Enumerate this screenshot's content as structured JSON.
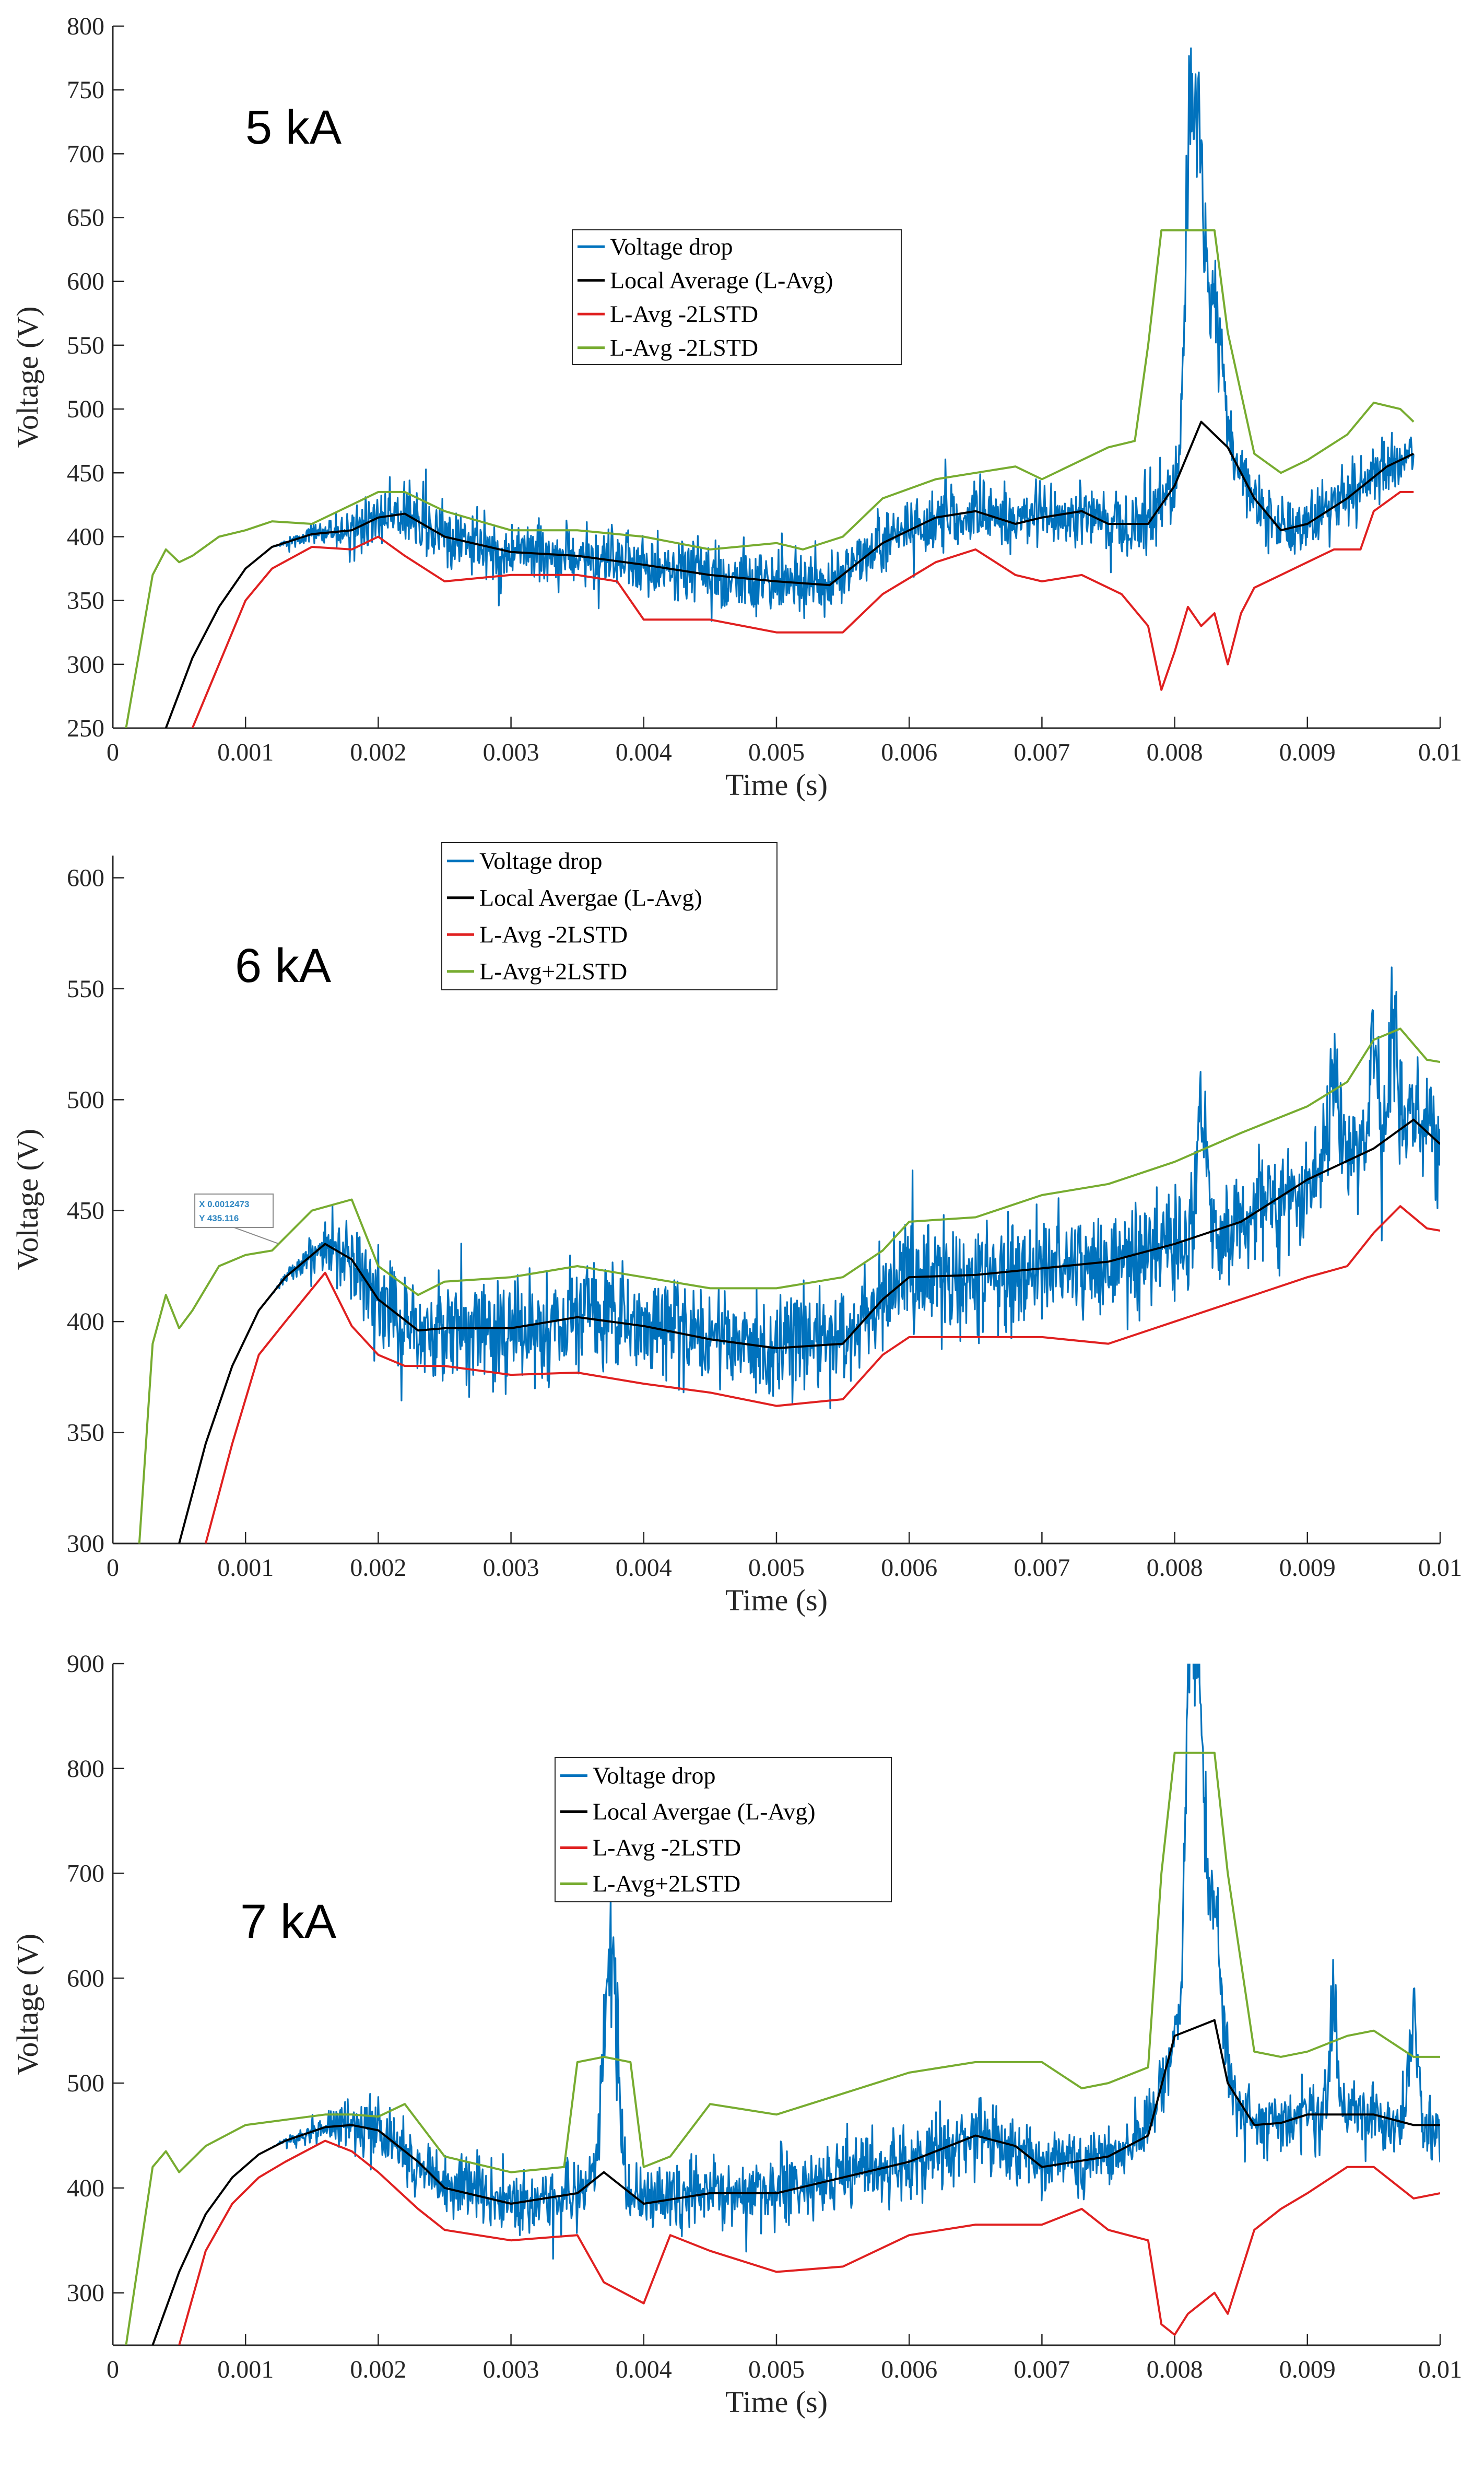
{
  "colors": {
    "voltage_drop": "#0072BD",
    "local_average": "#000000",
    "lower_band": "#E02020",
    "upper_band": "#77AC30",
    "axis": "#262626",
    "datatip_text": "#2E86C1"
  },
  "chart_data": [
    {
      "type": "line",
      "label": "5 kA",
      "xlabel": "Time (s)",
      "ylabel": "Voltage (V)",
      "xlim": [
        0,
        0.01
      ],
      "ylim": [
        250,
        800
      ],
      "x_ticks": [
        0,
        0.001,
        0.002,
        0.003,
        0.004,
        0.005,
        0.006,
        0.007,
        0.008,
        0.009,
        0.01
      ],
      "x_tick_labels": [
        "0",
        "0.001",
        "0.002",
        "0.003",
        "0.004",
        "0.005",
        "0.006",
        "0.007",
        "0.008",
        "0.009",
        "0.01"
      ],
      "y_ticks": [
        250,
        300,
        350,
        400,
        450,
        500,
        550,
        600,
        650,
        700,
        750,
        800
      ],
      "y_tick_labels": [
        "250",
        "300",
        "350",
        "400",
        "450",
        "500",
        "550",
        "600",
        "650",
        "700",
        "750",
        "800"
      ],
      "legend": [
        "Voltage drop",
        "Local Average (L-Avg)",
        "L-Avg -2LSTD",
        "L-Avg -2LSTD"
      ],
      "legend_position": "top-center",
      "datatip": null,
      "signal": {
        "x_end": 0.0098,
        "noise": 22,
        "spikes": [
          [
            0.00815,
            730,
            5e-05
          ],
          [
            0.0081,
            690,
            4e-05
          ],
          [
            0.0082,
            640,
            5e-05
          ],
          [
            0.0083,
            600,
            8e-05
          ]
        ]
      },
      "series": [
        {
          "name": "Local Average (L-Avg)",
          "role": "avg",
          "x": [
            0.0004,
            0.0006,
            0.0008,
            0.001,
            0.0012,
            0.0015,
            0.0018,
            0.002,
            0.0022,
            0.0025,
            0.003,
            0.0035,
            0.004,
            0.0045,
            0.005,
            0.0054,
            0.0058,
            0.0062,
            0.0065,
            0.0068,
            0.007,
            0.0073,
            0.0075,
            0.0078,
            0.008,
            0.0082,
            0.0084,
            0.0086,
            0.0088,
            0.009,
            0.0093,
            0.0096,
            0.0098
          ],
          "y": [
            250,
            305,
            345,
            375,
            392,
            402,
            405,
            415,
            418,
            400,
            388,
            385,
            378,
            370,
            365,
            362,
            395,
            415,
            420,
            410,
            415,
            420,
            410,
            410,
            440,
            490,
            470,
            430,
            405,
            410,
            430,
            455,
            465
          ]
        },
        {
          "name": "L-Avg -2LSTD",
          "role": "lower",
          "x": [
            0.0006,
            0.0008,
            0.001,
            0.0012,
            0.0015,
            0.0018,
            0.002,
            0.0022,
            0.0025,
            0.003,
            0.0035,
            0.0038,
            0.004,
            0.0045,
            0.005,
            0.0055,
            0.0058,
            0.0062,
            0.0065,
            0.0068,
            0.007,
            0.0073,
            0.0076,
            0.0078,
            0.0079,
            0.008,
            0.0081,
            0.0082,
            0.0083,
            0.0084,
            0.0085,
            0.0086,
            0.0088,
            0.009,
            0.0092,
            0.0094,
            0.0095,
            0.0097,
            0.0098
          ],
          "y": [
            250,
            300,
            350,
            375,
            392,
            390,
            400,
            385,
            365,
            370,
            370,
            365,
            335,
            335,
            325,
            325,
            355,
            380,
            390,
            370,
            365,
            370,
            355,
            330,
            280,
            310,
            345,
            330,
            340,
            300,
            340,
            360,
            370,
            380,
            390,
            390,
            420,
            435,
            435
          ]
        },
        {
          "name": "L-Avg -2LSTD",
          "role": "upper",
          "x": [
            0.0001,
            0.0003,
            0.0004,
            0.0005,
            0.0006,
            0.0008,
            0.001,
            0.0012,
            0.0015,
            0.0018,
            0.002,
            0.0022,
            0.0025,
            0.003,
            0.0035,
            0.004,
            0.0045,
            0.005,
            0.0052,
            0.0055,
            0.0058,
            0.0062,
            0.0065,
            0.0068,
            0.007,
            0.0073,
            0.0075,
            0.0077,
            0.0078,
            0.0079,
            0.008,
            0.0083,
            0.0084,
            0.0086,
            0.0088,
            0.009,
            0.0093,
            0.0095,
            0.0097,
            0.0098
          ],
          "y": [
            250,
            370,
            390,
            380,
            385,
            400,
            405,
            412,
            410,
            425,
            435,
            435,
            420,
            405,
            405,
            400,
            390,
            395,
            390,
            400,
            430,
            445,
            450,
            455,
            445,
            460,
            470,
            475,
            550,
            640,
            640,
            640,
            560,
            465,
            450,
            460,
            480,
            505,
            500,
            490
          ]
        }
      ]
    },
    {
      "type": "line",
      "label": "6 kA",
      "xlabel": "Time (s)",
      "ylabel": "Voltage (V)",
      "xlim": [
        0,
        0.01
      ],
      "ylim": [
        300,
        610
      ],
      "x_ticks": [
        0,
        0.001,
        0.002,
        0.003,
        0.004,
        0.005,
        0.006,
        0.007,
        0.008,
        0.009,
        0.01
      ],
      "x_tick_labels": [
        "0",
        "0.001",
        "0.002",
        "0.003",
        "0.004",
        "0.005",
        "0.006",
        "0.007",
        "0.008",
        "0.009",
        "0.01"
      ],
      "y_ticks": [
        300,
        350,
        400,
        450,
        500,
        550,
        600
      ],
      "y_tick_labels": [
        "300",
        "350",
        "400",
        "450",
        "500",
        "550",
        "600"
      ],
      "legend": [
        "Voltage drop",
        "Local Avergae (L-Avg)",
        "L-Avg -2LSTD",
        "L-Avg+2LSTD"
      ],
      "legend_position": "top-center",
      "datatip": {
        "x": 0.0012473,
        "y": 435.116,
        "x_text": "X 0.0012473",
        "y_text": "Y 435.116"
      },
      "signal": {
        "x_end": 0.01,
        "noise": 22,
        "spikes": [
          [
            0.0095,
            558,
            4e-05
          ],
          [
            0.00965,
            548,
            4e-05
          ],
          [
            0.0092,
            530,
            5e-05
          ],
          [
            0.0082,
            520,
            5e-05
          ]
        ]
      },
      "series": [
        {
          "name": "Local Avergae (L-Avg)",
          "role": "avg",
          "x": [
            0.0005,
            0.0007,
            0.0009,
            0.0011,
            0.0013,
            0.0016,
            0.0018,
            0.002,
            0.0023,
            0.0025,
            0.003,
            0.0035,
            0.004,
            0.0045,
            0.005,
            0.0055,
            0.0058,
            0.006,
            0.0065,
            0.007,
            0.0075,
            0.008,
            0.0085,
            0.009,
            0.0095,
            0.0098,
            0.01
          ],
          "y": [
            300,
            345,
            380,
            405,
            420,
            435,
            428,
            410,
            396,
            397,
            397,
            402,
            398,
            392,
            388,
            390,
            410,
            420,
            421,
            424,
            427,
            435,
            445,
            464,
            478,
            491,
            480
          ]
        },
        {
          "name": "L-Avg -2LSTD",
          "role": "lower",
          "x": [
            0.0007,
            0.0009,
            0.0011,
            0.0013,
            0.0016,
            0.0018,
            0.002,
            0.0022,
            0.0025,
            0.003,
            0.0035,
            0.004,
            0.0045,
            0.005,
            0.0055,
            0.0058,
            0.006,
            0.0065,
            0.007,
            0.0075,
            0.008,
            0.0085,
            0.009,
            0.0093,
            0.0095,
            0.0097,
            0.0099,
            0.01
          ],
          "y": [
            300,
            345,
            385,
            400,
            422,
            398,
            385,
            380,
            380,
            376,
            377,
            372,
            368,
            362,
            365,
            385,
            393,
            393,
            393,
            390,
            400,
            410,
            420,
            425,
            440,
            452,
            442,
            441
          ]
        },
        {
          "name": "L-Avg+2LSTD",
          "role": "upper",
          "x": [
            0.0002,
            0.0003,
            0.0004,
            0.0005,
            0.0006,
            0.0008,
            0.001,
            0.0012,
            0.0015,
            0.0018,
            0.002,
            0.0023,
            0.0025,
            0.003,
            0.0035,
            0.004,
            0.0045,
            0.005,
            0.0055,
            0.0058,
            0.006,
            0.0065,
            0.007,
            0.0075,
            0.008,
            0.0085,
            0.009,
            0.0093,
            0.0095,
            0.0097,
            0.0099,
            0.01
          ],
          "y": [
            300,
            390,
            412,
            397,
            405,
            425,
            430,
            432,
            450,
            455,
            425,
            412,
            418,
            420,
            425,
            420,
            415,
            415,
            420,
            432,
            445,
            447,
            457,
            462,
            472,
            485,
            497,
            508,
            527,
            532,
            518,
            517
          ]
        }
      ]
    },
    {
      "type": "line",
      "label": "7 kA",
      "xlabel": "Time (s)",
      "ylabel": "Voltage (V)",
      "xlim": [
        0,
        0.01
      ],
      "ylim": [
        250,
        900
      ],
      "x_ticks": [
        0,
        0.001,
        0.002,
        0.003,
        0.004,
        0.005,
        0.006,
        0.007,
        0.008,
        0.009,
        0.01
      ],
      "x_tick_labels": [
        "0",
        "0.001",
        "0.002",
        "0.003",
        "0.004",
        "0.005",
        "0.006",
        "0.007",
        "0.008",
        "0.009",
        "0.01"
      ],
      "y_ticks": [
        300,
        400,
        500,
        600,
        700,
        800,
        900
      ],
      "y_tick_labels": [
        "300",
        "400",
        "500",
        "600",
        "700",
        "800",
        "900"
      ],
      "legend": [
        "Voltage drop",
        "Local Avergae (L-Avg)",
        "L-Avg -2LSTD",
        "L-Avg+2LSTD"
      ],
      "legend_position": "top-center",
      "datatip": null,
      "signal": {
        "x_end": 0.01,
        "noise": 30,
        "spikes": [
          [
            0.00375,
            620,
            4e-05
          ],
          [
            0.0037,
            560,
            4e-05
          ],
          [
            0.0038,
            545,
            4e-05
          ],
          [
            0.00815,
            895,
            5e-05
          ],
          [
            0.0081,
            820,
            4e-05
          ],
          [
            0.0082,
            800,
            5e-05
          ],
          [
            0.0083,
            700,
            8e-05
          ],
          [
            0.0092,
            615,
            4e-05
          ],
          [
            0.0098,
            590,
            4e-05
          ]
        ]
      },
      "series": [
        {
          "name": "Local Avergae (L-Avg)",
          "role": "avg",
          "x": [
            0.0003,
            0.0005,
            0.0007,
            0.0009,
            0.0011,
            0.0013,
            0.0016,
            0.0018,
            0.002,
            0.0023,
            0.0025,
            0.003,
            0.0035,
            0.0037,
            0.004,
            0.0045,
            0.005,
            0.0055,
            0.006,
            0.0065,
            0.0068,
            0.007,
            0.0075,
            0.0078,
            0.008,
            0.0082,
            0.0083,
            0.0084,
            0.0086,
            0.0088,
            0.009,
            0.0093,
            0.0095,
            0.0098,
            0.01
          ],
          "y": [
            250,
            320,
            375,
            410,
            432,
            445,
            458,
            460,
            455,
            425,
            400,
            385,
            395,
            415,
            385,
            395,
            395,
            410,
            425,
            450,
            440,
            420,
            430,
            450,
            545,
            555,
            560,
            500,
            460,
            462,
            470,
            470,
            470,
            460,
            460
          ]
        },
        {
          "name": "L-Avg -2LSTD",
          "role": "lower",
          "x": [
            0.0005,
            0.0007,
            0.0009,
            0.0011,
            0.0013,
            0.0016,
            0.0018,
            0.002,
            0.0023,
            0.0025,
            0.003,
            0.0035,
            0.0037,
            0.004,
            0.0042,
            0.0045,
            0.005,
            0.0055,
            0.006,
            0.0065,
            0.007,
            0.0073,
            0.0075,
            0.0078,
            0.0079,
            0.008,
            0.0081,
            0.0082,
            0.0083,
            0.0084,
            0.0086,
            0.0088,
            0.009,
            0.0093,
            0.0095,
            0.0098,
            0.01
          ],
          "y": [
            250,
            340,
            385,
            410,
            425,
            445,
            435,
            415,
            380,
            360,
            350,
            355,
            310,
            290,
            355,
            340,
            320,
            325,
            355,
            365,
            365,
            380,
            360,
            350,
            270,
            260,
            280,
            290,
            300,
            280,
            360,
            380,
            395,
            420,
            420,
            390,
            395
          ]
        },
        {
          "name": "L-Avg+2LSTD",
          "role": "upper",
          "x": [
            0.0001,
            0.0003,
            0.0004,
            0.0005,
            0.0007,
            0.001,
            0.0013,
            0.0016,
            0.0018,
            0.002,
            0.0022,
            0.0025,
            0.003,
            0.0034,
            0.0035,
            0.0037,
            0.0039,
            0.004,
            0.0042,
            0.0045,
            0.005,
            0.0055,
            0.006,
            0.0065,
            0.007,
            0.0073,
            0.0075,
            0.0078,
            0.0079,
            0.008,
            0.0083,
            0.0084,
            0.0086,
            0.0088,
            0.009,
            0.0093,
            0.0095,
            0.0098,
            0.01
          ],
          "y": [
            250,
            420,
            435,
            415,
            440,
            460,
            465,
            470,
            470,
            468,
            480,
            430,
            415,
            420,
            520,
            525,
            520,
            420,
            430,
            480,
            470,
            490,
            510,
            520,
            520,
            495,
            500,
            515,
            700,
            815,
            815,
            700,
            530,
            525,
            530,
            545,
            550,
            525,
            525
          ]
        }
      ]
    }
  ]
}
